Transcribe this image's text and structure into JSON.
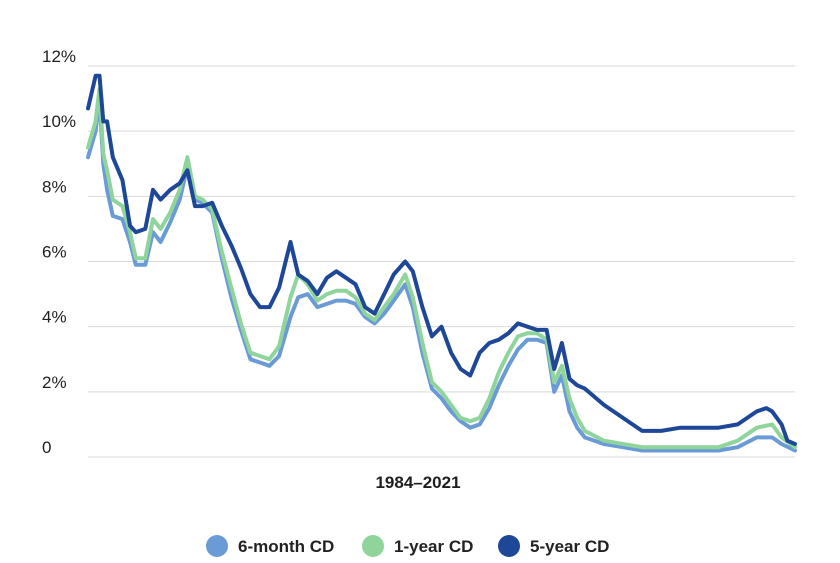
{
  "chart_data": {
    "type": "line",
    "title": "",
    "xlabel": "1984–2021",
    "ylabel": "",
    "x_range": [
      1984,
      2021
    ],
    "ylim": [
      0,
      12
    ],
    "y_ticks": [
      {
        "value": 0,
        "label": "0"
      },
      {
        "value": 2,
        "label": "2%"
      },
      {
        "value": 4,
        "label": "4%"
      },
      {
        "value": 6,
        "label": "6%"
      },
      {
        "value": 8,
        "label": "8%"
      },
      {
        "value": 10,
        "label": "10%"
      },
      {
        "value": 12,
        "label": "12%"
      }
    ],
    "grid": true,
    "legend_position": "bottom-center",
    "series": [
      {
        "name": "6-month CD",
        "color": "#6b9bd6",
        "points": [
          [
            1984.0,
            9.2
          ],
          [
            1984.4,
            10.0
          ],
          [
            1984.6,
            11.0
          ],
          [
            1984.8,
            9.0
          ],
          [
            1985.0,
            8.2
          ],
          [
            1985.3,
            7.4
          ],
          [
            1985.8,
            7.3
          ],
          [
            1986.2,
            6.6
          ],
          [
            1986.5,
            5.9
          ],
          [
            1987.0,
            5.9
          ],
          [
            1987.4,
            6.9
          ],
          [
            1987.8,
            6.6
          ],
          [
            1988.3,
            7.2
          ],
          [
            1988.8,
            7.9
          ],
          [
            1989.2,
            8.9
          ],
          [
            1989.6,
            7.9
          ],
          [
            1990.0,
            7.8
          ],
          [
            1990.5,
            7.5
          ],
          [
            1991.0,
            6.1
          ],
          [
            1991.5,
            4.9
          ],
          [
            1992.0,
            3.9
          ],
          [
            1992.5,
            3.0
          ],
          [
            1993.0,
            2.9
          ],
          [
            1993.5,
            2.8
          ],
          [
            1994.0,
            3.1
          ],
          [
            1994.6,
            4.3
          ],
          [
            1995.0,
            4.9
          ],
          [
            1995.5,
            5.0
          ],
          [
            1996.0,
            4.6
          ],
          [
            1996.5,
            4.7
          ],
          [
            1997.0,
            4.8
          ],
          [
            1997.5,
            4.8
          ],
          [
            1998.0,
            4.7
          ],
          [
            1998.5,
            4.3
          ],
          [
            1999.0,
            4.1
          ],
          [
            1999.5,
            4.4
          ],
          [
            2000.0,
            4.8
          ],
          [
            2000.6,
            5.3
          ],
          [
            2001.0,
            4.6
          ],
          [
            2001.5,
            3.2
          ],
          [
            2002.0,
            2.1
          ],
          [
            2002.5,
            1.8
          ],
          [
            2003.0,
            1.4
          ],
          [
            2003.5,
            1.1
          ],
          [
            2004.0,
            0.9
          ],
          [
            2004.5,
            1.0
          ],
          [
            2005.0,
            1.5
          ],
          [
            2005.5,
            2.2
          ],
          [
            2006.0,
            2.8
          ],
          [
            2006.5,
            3.3
          ],
          [
            2007.0,
            3.6
          ],
          [
            2007.5,
            3.6
          ],
          [
            2008.0,
            3.5
          ],
          [
            2008.4,
            2.0
          ],
          [
            2008.8,
            2.5
          ],
          [
            2009.2,
            1.4
          ],
          [
            2009.6,
            0.9
          ],
          [
            2010.0,
            0.6
          ],
          [
            2011.0,
            0.4
          ],
          [
            2012.0,
            0.3
          ],
          [
            2013.0,
            0.2
          ],
          [
            2014.0,
            0.2
          ],
          [
            2015.0,
            0.2
          ],
          [
            2016.0,
            0.2
          ],
          [
            2017.0,
            0.2
          ],
          [
            2018.0,
            0.3
          ],
          [
            2019.0,
            0.6
          ],
          [
            2019.8,
            0.6
          ],
          [
            2020.3,
            0.4
          ],
          [
            2021.0,
            0.2
          ]
        ]
      },
      {
        "name": "1-year CD",
        "color": "#8fd49b",
        "points": [
          [
            1984.0,
            9.5
          ],
          [
            1984.4,
            10.3
          ],
          [
            1984.6,
            11.3
          ],
          [
            1984.8,
            9.3
          ],
          [
            1985.0,
            8.8
          ],
          [
            1985.3,
            7.9
          ],
          [
            1985.8,
            7.7
          ],
          [
            1986.2,
            6.9
          ],
          [
            1986.5,
            6.1
          ],
          [
            1987.0,
            6.1
          ],
          [
            1987.4,
            7.3
          ],
          [
            1987.8,
            7.0
          ],
          [
            1988.3,
            7.5
          ],
          [
            1988.8,
            8.2
          ],
          [
            1989.2,
            9.2
          ],
          [
            1989.6,
            8.0
          ],
          [
            1990.0,
            7.9
          ],
          [
            1990.5,
            7.6
          ],
          [
            1991.0,
            6.3
          ],
          [
            1991.5,
            5.2
          ],
          [
            1992.0,
            4.1
          ],
          [
            1992.5,
            3.2
          ],
          [
            1993.0,
            3.1
          ],
          [
            1993.5,
            3.0
          ],
          [
            1994.0,
            3.4
          ],
          [
            1994.6,
            4.9
          ],
          [
            1995.0,
            5.6
          ],
          [
            1995.5,
            5.3
          ],
          [
            1996.0,
            4.8
          ],
          [
            1996.5,
            5.0
          ],
          [
            1997.0,
            5.1
          ],
          [
            1997.5,
            5.1
          ],
          [
            1998.0,
            4.9
          ],
          [
            1998.5,
            4.4
          ],
          [
            1999.0,
            4.2
          ],
          [
            1999.5,
            4.6
          ],
          [
            2000.0,
            5.0
          ],
          [
            2000.6,
            5.6
          ],
          [
            2001.0,
            4.9
          ],
          [
            2001.5,
            3.5
          ],
          [
            2002.0,
            2.3
          ],
          [
            2002.5,
            2.0
          ],
          [
            2003.0,
            1.6
          ],
          [
            2003.5,
            1.2
          ],
          [
            2004.0,
            1.1
          ],
          [
            2004.5,
            1.2
          ],
          [
            2005.0,
            1.8
          ],
          [
            2005.5,
            2.6
          ],
          [
            2006.0,
            3.2
          ],
          [
            2006.5,
            3.7
          ],
          [
            2007.0,
            3.8
          ],
          [
            2007.5,
            3.8
          ],
          [
            2008.0,
            3.6
          ],
          [
            2008.4,
            2.3
          ],
          [
            2008.8,
            2.8
          ],
          [
            2009.2,
            1.8
          ],
          [
            2009.6,
            1.2
          ],
          [
            2010.0,
            0.8
          ],
          [
            2011.0,
            0.5
          ],
          [
            2012.0,
            0.4
          ],
          [
            2013.0,
            0.3
          ],
          [
            2014.0,
            0.3
          ],
          [
            2015.0,
            0.3
          ],
          [
            2016.0,
            0.3
          ],
          [
            2017.0,
            0.3
          ],
          [
            2018.0,
            0.5
          ],
          [
            2019.0,
            0.9
          ],
          [
            2019.8,
            1.0
          ],
          [
            2020.3,
            0.6
          ],
          [
            2021.0,
            0.3
          ]
        ]
      },
      {
        "name": "5-year CD",
        "color": "#1e4797",
        "points": [
          [
            1984.0,
            10.7
          ],
          [
            1984.4,
            11.7
          ],
          [
            1984.6,
            11.7
          ],
          [
            1984.8,
            10.3
          ],
          [
            1985.0,
            10.3
          ],
          [
            1985.3,
            9.2
          ],
          [
            1985.8,
            8.5
          ],
          [
            1986.2,
            7.1
          ],
          [
            1986.5,
            6.9
          ],
          [
            1987.0,
            7.0
          ],
          [
            1987.4,
            8.2
          ],
          [
            1987.8,
            7.9
          ],
          [
            1988.3,
            8.2
          ],
          [
            1988.8,
            8.4
          ],
          [
            1989.2,
            8.8
          ],
          [
            1989.6,
            7.7
          ],
          [
            1990.0,
            7.7
          ],
          [
            1990.5,
            7.8
          ],
          [
            1991.0,
            7.1
          ],
          [
            1991.5,
            6.5
          ],
          [
            1992.0,
            5.8
          ],
          [
            1992.5,
            5.0
          ],
          [
            1993.0,
            4.6
          ],
          [
            1993.5,
            4.6
          ],
          [
            1994.0,
            5.2
          ],
          [
            1994.6,
            6.6
          ],
          [
            1995.0,
            5.6
          ],
          [
            1995.5,
            5.4
          ],
          [
            1996.0,
            5.0
          ],
          [
            1996.5,
            5.5
          ],
          [
            1997.0,
            5.7
          ],
          [
            1997.5,
            5.5
          ],
          [
            1998.0,
            5.3
          ],
          [
            1998.5,
            4.6
          ],
          [
            1999.0,
            4.4
          ],
          [
            1999.5,
            5.0
          ],
          [
            2000.0,
            5.6
          ],
          [
            2000.6,
            6.0
          ],
          [
            2001.0,
            5.7
          ],
          [
            2001.5,
            4.6
          ],
          [
            2002.0,
            3.7
          ],
          [
            2002.5,
            4.0
          ],
          [
            2003.0,
            3.2
          ],
          [
            2003.5,
            2.7
          ],
          [
            2004.0,
            2.5
          ],
          [
            2004.5,
            3.2
          ],
          [
            2005.0,
            3.5
          ],
          [
            2005.5,
            3.6
          ],
          [
            2006.0,
            3.8
          ],
          [
            2006.5,
            4.1
          ],
          [
            2007.0,
            4.0
          ],
          [
            2007.5,
            3.9
          ],
          [
            2008.0,
            3.9
          ],
          [
            2008.4,
            2.7
          ],
          [
            2008.8,
            3.5
          ],
          [
            2009.2,
            2.4
          ],
          [
            2009.6,
            2.2
          ],
          [
            2010.0,
            2.1
          ],
          [
            2011.0,
            1.6
          ],
          [
            2012.0,
            1.2
          ],
          [
            2013.0,
            0.8
          ],
          [
            2014.0,
            0.8
          ],
          [
            2015.0,
            0.9
          ],
          [
            2016.0,
            0.9
          ],
          [
            2017.0,
            0.9
          ],
          [
            2018.0,
            1.0
          ],
          [
            2019.0,
            1.4
          ],
          [
            2019.5,
            1.5
          ],
          [
            2019.8,
            1.4
          ],
          [
            2020.3,
            1.0
          ],
          [
            2020.6,
            0.5
          ],
          [
            2021.0,
            0.4
          ]
        ]
      }
    ]
  }
}
